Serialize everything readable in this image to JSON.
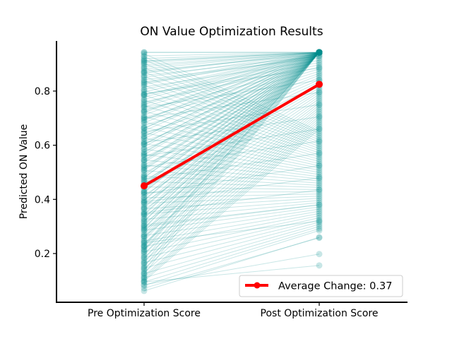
{
  "chart_data": {
    "type": "line",
    "title": "ON Value Optimization Results",
    "xlabel": "",
    "ylabel": "Predicted ON Value",
    "categories": [
      "Pre Optimization Score",
      "Post Optimization Score"
    ],
    "ylim": [
      0.02,
      0.985
    ],
    "yticks": [
      0.2,
      0.4,
      0.6,
      0.8
    ],
    "grid": false,
    "legend_position": "bottom-right",
    "colors": {
      "pairs": "#008b8b",
      "average": "#ff0000"
    },
    "average": {
      "name": "Average Change: 0.37",
      "values": [
        0.45,
        0.825
      ]
    },
    "pairs": [
      [
        0.943,
        0.943
      ],
      [
        0.943,
        0.943
      ],
      [
        0.93,
        0.943
      ],
      [
        0.92,
        0.942
      ],
      [
        0.912,
        0.943
      ],
      [
        0.905,
        0.943
      ],
      [
        0.897,
        0.941
      ],
      [
        0.89,
        0.943
      ],
      [
        0.882,
        0.943
      ],
      [
        0.875,
        0.936
      ],
      [
        0.866,
        0.943
      ],
      [
        0.858,
        0.929
      ],
      [
        0.85,
        0.943
      ],
      [
        0.842,
        0.922
      ],
      [
        0.833,
        0.943
      ],
      [
        0.825,
        0.943
      ],
      [
        0.815,
        0.913
      ],
      [
        0.806,
        0.943
      ],
      [
        0.797,
        0.943
      ],
      [
        0.788,
        0.905
      ],
      [
        0.778,
        0.943
      ],
      [
        0.769,
        0.943
      ],
      [
        0.76,
        0.897
      ],
      [
        0.75,
        0.943
      ],
      [
        0.741,
        0.943
      ],
      [
        0.731,
        0.889
      ],
      [
        0.721,
        0.943
      ],
      [
        0.712,
        0.943
      ],
      [
        0.702,
        0.881
      ],
      [
        0.692,
        0.943
      ],
      [
        0.683,
        0.943
      ],
      [
        0.673,
        0.873
      ],
      [
        0.663,
        0.943
      ],
      [
        0.653,
        0.943
      ],
      [
        0.643,
        0.865
      ],
      [
        0.633,
        0.943
      ],
      [
        0.624,
        0.943
      ],
      [
        0.614,
        0.858
      ],
      [
        0.604,
        0.943
      ],
      [
        0.594,
        0.943
      ],
      [
        0.585,
        0.85
      ],
      [
        0.575,
        0.943
      ],
      [
        0.565,
        0.943
      ],
      [
        0.556,
        0.842
      ],
      [
        0.546,
        0.943
      ],
      [
        0.536,
        0.943
      ],
      [
        0.527,
        0.834
      ],
      [
        0.517,
        0.943
      ],
      [
        0.508,
        0.943
      ],
      [
        0.498,
        0.826
      ],
      [
        0.489,
        0.943
      ],
      [
        0.48,
        0.943
      ],
      [
        0.47,
        0.818
      ],
      [
        0.461,
        0.943
      ],
      [
        0.452,
        0.943
      ],
      [
        0.443,
        0.811
      ],
      [
        0.434,
        0.943
      ],
      [
        0.425,
        0.943
      ],
      [
        0.416,
        0.803
      ],
      [
        0.407,
        0.943
      ],
      [
        0.398,
        0.943
      ],
      [
        0.389,
        0.796
      ],
      [
        0.38,
        0.943
      ],
      [
        0.372,
        0.943
      ],
      [
        0.363,
        0.788
      ],
      [
        0.354,
        0.943
      ],
      [
        0.346,
        0.943
      ],
      [
        0.337,
        0.78
      ],
      [
        0.329,
        0.943
      ],
      [
        0.32,
        0.943
      ],
      [
        0.312,
        0.772
      ],
      [
        0.303,
        0.943
      ],
      [
        0.295,
        0.943
      ],
      [
        0.287,
        0.764
      ],
      [
        0.279,
        0.943
      ],
      [
        0.271,
        0.943
      ],
      [
        0.263,
        0.756
      ],
      [
        0.255,
        0.943
      ],
      [
        0.247,
        0.943
      ],
      [
        0.239,
        0.748
      ],
      [
        0.232,
        0.943
      ],
      [
        0.224,
        0.943
      ],
      [
        0.216,
        0.74
      ],
      [
        0.209,
        0.943
      ],
      [
        0.201,
        0.732
      ],
      [
        0.194,
        0.943
      ],
      [
        0.186,
        0.724
      ],
      [
        0.179,
        0.943
      ],
      [
        0.172,
        0.716
      ],
      [
        0.165,
        0.943
      ],
      [
        0.158,
        0.708
      ],
      [
        0.151,
        0.943
      ],
      [
        0.144,
        0.7
      ],
      [
        0.137,
        0.943
      ],
      [
        0.13,
        0.692
      ],
      [
        0.124,
        0.943
      ],
      [
        0.117,
        0.684
      ],
      [
        0.111,
        0.676
      ],
      [
        0.104,
        0.668
      ],
      [
        0.098,
        0.66
      ],
      [
        0.938,
        0.652
      ],
      [
        0.927,
        0.644
      ],
      [
        0.916,
        0.636
      ],
      [
        0.902,
        0.628
      ],
      [
        0.886,
        0.62
      ],
      [
        0.87,
        0.612
      ],
      [
        0.854,
        0.604
      ],
      [
        0.838,
        0.596
      ],
      [
        0.821,
        0.588
      ],
      [
        0.803,
        0.58
      ],
      [
        0.785,
        0.572
      ],
      [
        0.766,
        0.564
      ],
      [
        0.746,
        0.556
      ],
      [
        0.726,
        0.548
      ],
      [
        0.706,
        0.54
      ],
      [
        0.686,
        0.532
      ],
      [
        0.666,
        0.524
      ],
      [
        0.646,
        0.516
      ],
      [
        0.626,
        0.508
      ],
      [
        0.606,
        0.5
      ],
      [
        0.586,
        0.492
      ],
      [
        0.566,
        0.484
      ],
      [
        0.546,
        0.476
      ],
      [
        0.526,
        0.468
      ],
      [
        0.506,
        0.46
      ],
      [
        0.486,
        0.452
      ],
      [
        0.466,
        0.444
      ],
      [
        0.446,
        0.436
      ],
      [
        0.426,
        0.428
      ],
      [
        0.406,
        0.42
      ],
      [
        0.386,
        0.412
      ],
      [
        0.366,
        0.404
      ],
      [
        0.346,
        0.396
      ],
      [
        0.326,
        0.388
      ],
      [
        0.306,
        0.38
      ],
      [
        0.286,
        0.372
      ],
      [
        0.266,
        0.364
      ],
      [
        0.246,
        0.356
      ],
      [
        0.226,
        0.348
      ],
      [
        0.206,
        0.34
      ],
      [
        0.186,
        0.332
      ],
      [
        0.166,
        0.324
      ],
      [
        0.146,
        0.316
      ],
      [
        0.126,
        0.308
      ],
      [
        0.11,
        0.3
      ],
      [
        0.095,
        0.292
      ],
      [
        0.082,
        0.285
      ],
      [
        0.072,
        0.258
      ],
      [
        0.062,
        0.26
      ],
      [
        0.085,
        0.198
      ],
      [
        0.095,
        0.156
      ],
      [
        0.24,
        0.32
      ],
      [
        0.3,
        0.38
      ],
      [
        0.35,
        0.435
      ],
      [
        0.39,
        0.48
      ],
      [
        0.42,
        0.525
      ],
      [
        0.475,
        0.57
      ],
      [
        0.52,
        0.615
      ],
      [
        0.56,
        0.66
      ],
      [
        0.61,
        0.705
      ],
      [
        0.65,
        0.75
      ],
      [
        0.7,
        0.795
      ],
      [
        0.74,
        0.84
      ],
      [
        0.79,
        0.885
      ],
      [
        0.83,
        0.93
      ],
      [
        0.87,
        0.943
      ],
      [
        0.91,
        0.943
      ],
      [
        0.215,
        0.943
      ],
      [
        0.228,
        0.943
      ],
      [
        0.262,
        0.943
      ],
      [
        0.292,
        0.943
      ],
      [
        0.318,
        0.943
      ],
      [
        0.342,
        0.943
      ],
      [
        0.368,
        0.943
      ],
      [
        0.395,
        0.943
      ],
      [
        0.428,
        0.943
      ],
      [
        0.455,
        0.943
      ],
      [
        0.482,
        0.943
      ],
      [
        0.512,
        0.943
      ],
      [
        0.542,
        0.943
      ],
      [
        0.572,
        0.943
      ],
      [
        0.602,
        0.943
      ],
      [
        0.632,
        0.943
      ],
      [
        0.662,
        0.943
      ],
      [
        0.695,
        0.943
      ],
      [
        0.725,
        0.943
      ],
      [
        0.755,
        0.943
      ],
      [
        0.785,
        0.943
      ]
    ]
  }
}
